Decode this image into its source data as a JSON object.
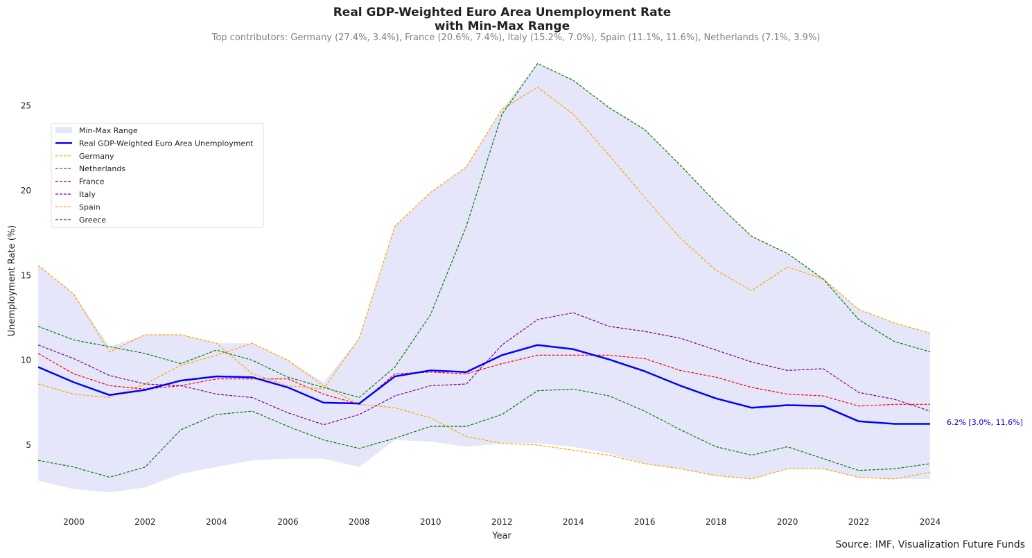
{
  "chart_data": {
    "type": "line",
    "title_line1": "Real GDP-Weighted Euro Area Unemployment Rate",
    "title_line2": "with Min-Max Range",
    "subtitle": "Top contributors: Germany (27.4%, 3.4%), France (20.6%, 7.4%), Italy (15.2%, 7.0%), Spain (11.1%, 11.6%), Netherlands (7.1%, 3.9%)",
    "xlabel": "Year",
    "ylabel": "Unemployment Rate (%)",
    "xlim": [
      1999,
      2024
    ],
    "ylim": [
      1.2,
      28.3
    ],
    "x_ticks": [
      "2000",
      "2002",
      "2004",
      "2006",
      "2008",
      "2010",
      "2012",
      "2014",
      "2016",
      "2018",
      "2020",
      "2022",
      "2024"
    ],
    "y_ticks": [
      "5",
      "10",
      "15",
      "20",
      "25"
    ],
    "grid": false,
    "legend_position": "upper left",
    "years": [
      1999,
      2000,
      2001,
      2002,
      2003,
      2004,
      2005,
      2006,
      2007,
      2008,
      2009,
      2010,
      2011,
      2012,
      2013,
      2014,
      2015,
      2016,
      2017,
      2018,
      2019,
      2020,
      2021,
      2022,
      2023,
      2024
    ],
    "range": {
      "name": "Min-Max Range",
      "color": "#e6e6fa",
      "min": [
        2.9,
        2.4,
        2.2,
        2.5,
        3.3,
        3.7,
        4.1,
        4.2,
        4.2,
        3.7,
        5.3,
        5.2,
        4.9,
        5.1,
        5.1,
        4.9,
        4.5,
        3.9,
        3.6,
        3.2,
        3.0,
        3.6,
        3.6,
        3.1,
        3.0,
        3.0
      ],
      "max": [
        15.6,
        13.9,
        10.8,
        11.5,
        11.5,
        11.0,
        11.0,
        10.0,
        8.7,
        11.3,
        17.9,
        19.9,
        21.4,
        24.8,
        27.5,
        26.5,
        24.9,
        23.6,
        21.5,
        19.3,
        17.3,
        16.3,
        14.8,
        13.0,
        12.2,
        11.6
      ]
    },
    "weighted": {
      "name": "Real GDP-Weighted Euro Area Unemployment",
      "color": "#0000ff",
      "values": [
        9.6,
        8.7,
        7.95,
        8.25,
        8.8,
        9.05,
        9.0,
        8.4,
        7.5,
        7.45,
        9.05,
        9.4,
        9.3,
        10.3,
        10.9,
        10.65,
        10.05,
        9.35,
        8.5,
        7.75,
        7.2,
        7.35,
        7.3,
        6.4,
        6.25,
        6.25
      ]
    },
    "series": [
      {
        "name": "Germany",
        "color": "#ffa500",
        "values": [
          8.6,
          8.0,
          7.8,
          8.6,
          9.7,
          10.3,
          11.0,
          10.0,
          8.5,
          7.4,
          7.2,
          6.6,
          5.5,
          5.1,
          5.0,
          4.7,
          4.4,
          3.9,
          3.6,
          3.2,
          3.0,
          3.6,
          3.6,
          3.1,
          3.0,
          3.4
        ]
      },
      {
        "name": "Netherlands",
        "color": "#008000",
        "values": [
          4.1,
          3.7,
          3.1,
          3.7,
          5.9,
          6.8,
          7.0,
          6.1,
          5.3,
          4.8,
          5.4,
          6.1,
          6.1,
          6.8,
          8.2,
          8.3,
          7.9,
          7.0,
          5.9,
          4.9,
          4.4,
          4.9,
          4.2,
          3.5,
          3.6,
          3.9
        ]
      },
      {
        "name": "France",
        "color": "#ff0000",
        "values": [
          10.4,
          9.2,
          8.5,
          8.3,
          8.5,
          8.9,
          8.9,
          8.9,
          8.0,
          7.4,
          9.2,
          9.3,
          9.2,
          9.8,
          10.3,
          10.3,
          10.3,
          10.1,
          9.4,
          9.0,
          8.4,
          8.0,
          7.9,
          7.3,
          7.4,
          7.4
        ]
      },
      {
        "name": "Italy",
        "color": "#800080",
        "values": [
          10.9,
          10.1,
          9.1,
          8.6,
          8.5,
          8.0,
          7.8,
          6.9,
          6.2,
          6.8,
          7.9,
          8.5,
          8.6,
          10.9,
          12.4,
          12.8,
          12.0,
          11.7,
          11.3,
          10.6,
          9.9,
          9.4,
          9.5,
          8.1,
          7.7,
          7.0
        ]
      },
      {
        "name": "Spain",
        "color": "#ffa500",
        "values": [
          15.6,
          13.9,
          10.5,
          11.5,
          11.5,
          11.0,
          9.2,
          8.5,
          8.3,
          11.3,
          17.9,
          19.9,
          21.4,
          24.8,
          26.1,
          24.5,
          22.1,
          19.6,
          17.2,
          15.3,
          14.1,
          15.5,
          14.8,
          13.0,
          12.2,
          11.6
        ]
      },
      {
        "name": "Greece",
        "color": "#008000",
        "values": [
          12.0,
          11.2,
          10.8,
          10.4,
          9.8,
          10.6,
          10.0,
          9.0,
          8.4,
          7.8,
          9.6,
          12.7,
          17.9,
          24.5,
          27.5,
          26.5,
          24.9,
          23.6,
          21.5,
          19.3,
          17.3,
          16.3,
          14.8,
          12.4,
          11.1,
          10.5
        ]
      }
    ],
    "end_annotation": "6.2% [3.0%, 11.6%]",
    "end_annotation_color": "#0000cd"
  },
  "source_note": "Source: IMF, Visualization Future Funds"
}
